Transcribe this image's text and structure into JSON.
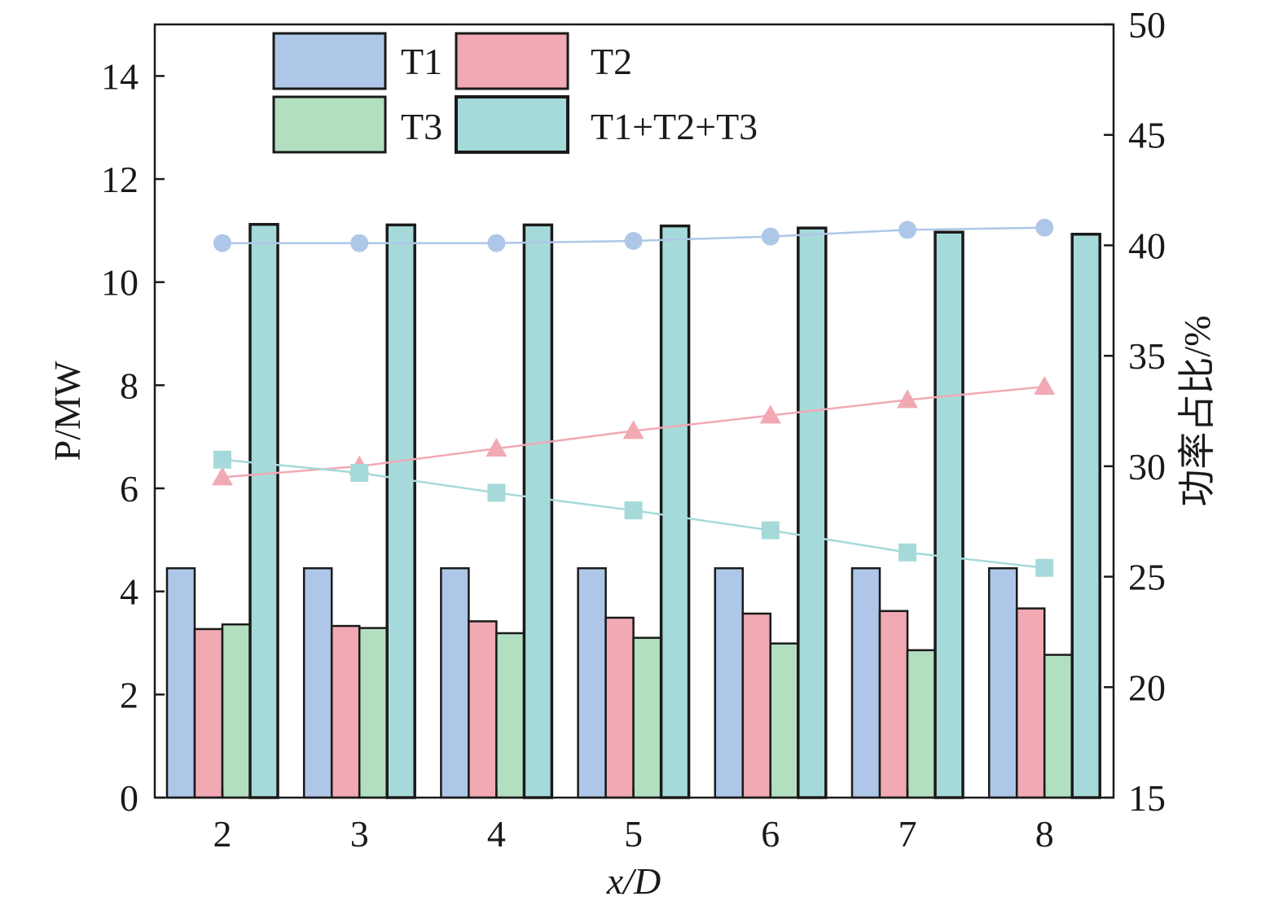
{
  "chart_data": {
    "type": "bar",
    "xlabel": "x/D",
    "ylabel_left": "P/MW",
    "ylabel_right": "功率占比/%",
    "categories": [
      "2",
      "3",
      "4",
      "5",
      "6",
      "7",
      "8"
    ],
    "ylim_left": [
      0,
      15
    ],
    "yticks_left": [
      0,
      2,
      4,
      6,
      8,
      10,
      12,
      14
    ],
    "ylim_right": [
      15,
      50
    ],
    "yticks_right": [
      15,
      20,
      25,
      30,
      35,
      40,
      45,
      50
    ],
    "grid": false,
    "legend_position": "top-left",
    "series": [
      {
        "name": "T1",
        "color": "#aec7e8",
        "values": [
          4.45,
          4.45,
          4.45,
          4.45,
          4.45,
          4.45,
          4.45
        ]
      },
      {
        "name": "T2",
        "color": "#f1a9b4",
        "values": [
          3.27,
          3.33,
          3.42,
          3.49,
          3.57,
          3.62,
          3.67
        ]
      },
      {
        "name": "T3",
        "color": "#b3dfc1",
        "values": [
          3.36,
          3.29,
          3.19,
          3.1,
          2.99,
          2.86,
          2.77
        ]
      },
      {
        "name": "T1+T2+T3",
        "color": "#a6dada",
        "values": [
          11.12,
          11.11,
          11.11,
          11.09,
          11.05,
          10.97,
          10.93
        ]
      }
    ],
    "line_series": [
      {
        "of": "T1",
        "marker": "circle",
        "color": "#aec7e8",
        "axis": "right",
        "values": [
          40.1,
          40.1,
          40.1,
          40.2,
          40.4,
          40.7,
          40.8
        ]
      },
      {
        "of": "T2",
        "marker": "triangle",
        "color": "#f1a9b4",
        "axis": "right",
        "values": [
          29.5,
          30.0,
          30.8,
          31.6,
          32.3,
          33.0,
          33.6
        ]
      },
      {
        "of": "T3",
        "marker": "square",
        "color": "#a6dada",
        "axis": "right",
        "values": [
          30.3,
          29.7,
          28.8,
          28.0,
          27.1,
          26.1,
          25.4
        ]
      }
    ]
  }
}
